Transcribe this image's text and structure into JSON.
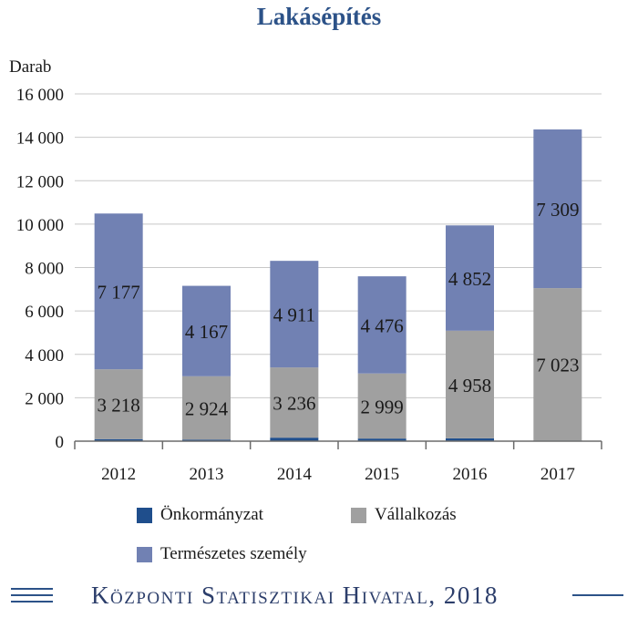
{
  "chart_data": {
    "type": "bar",
    "stacked": true,
    "title": "Lakásépítés",
    "ylabel": "Darab",
    "xlabel": "",
    "ylim": [
      0,
      16000
    ],
    "yticks": [
      0,
      2000,
      4000,
      6000,
      8000,
      10000,
      12000,
      14000,
      16000
    ],
    "ytick_labels": [
      "0",
      "2 000",
      "4 000",
      "6 000",
      "8 000",
      "10 000",
      "12 000",
      "14 000",
      "16 000"
    ],
    "categories": [
      "2012",
      "2013",
      "2014",
      "2015",
      "2016",
      "2017"
    ],
    "grid": true,
    "series": [
      {
        "name": "Önkormányzat",
        "color": "#1f4e8c",
        "values": [
          93,
          66,
          161,
          120,
          131,
          29
        ],
        "labels": [
          "",
          "",
          "",
          "",
          "",
          ""
        ]
      },
      {
        "name": "Vállalkozás",
        "color": "#a0a0a0",
        "values": [
          3218,
          2924,
          3236,
          2999,
          4958,
          7023
        ],
        "labels": [
          "3 218",
          "2 924",
          "3 236",
          "2 999",
          "4 958",
          "7 023"
        ]
      },
      {
        "name": "Természetes személy",
        "color": "#7181b3",
        "values": [
          7177,
          4167,
          4911,
          4476,
          4852,
          7309
        ],
        "labels": [
          "7 177",
          "4 167",
          "4 911",
          "4 476",
          "4 852",
          "7 309"
        ]
      }
    ]
  },
  "footer": {
    "text": "Központi Statisztikai Hivatal, 2018"
  }
}
